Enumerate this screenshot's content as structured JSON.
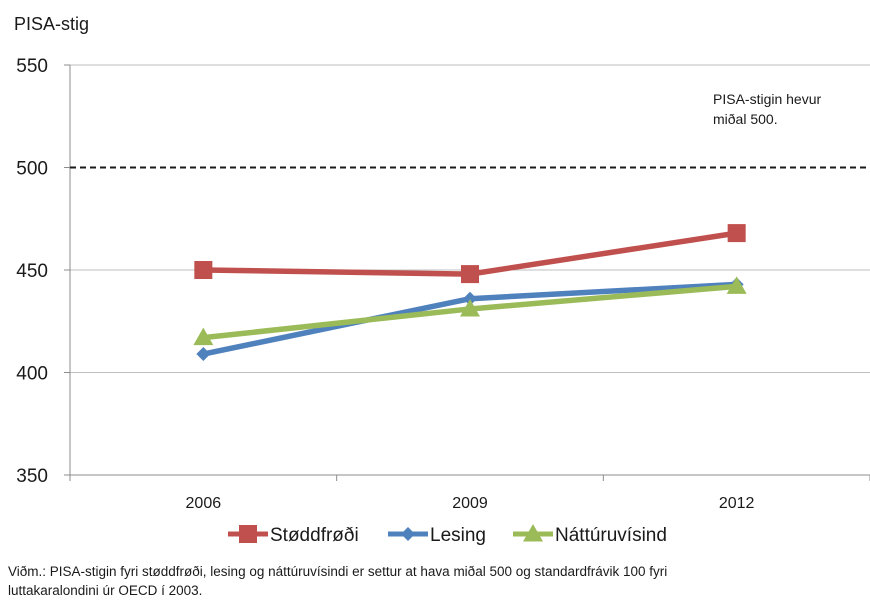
{
  "chart_data": {
    "type": "line",
    "ylabel": "PISA-stig",
    "ylim": [
      350,
      550
    ],
    "yticks": [
      350,
      400,
      450,
      500,
      550
    ],
    "categories": [
      "2006",
      "2009",
      "2012"
    ],
    "grid": true,
    "reference_line": {
      "value": 500,
      "style": "dashed"
    },
    "annotation": [
      "PISA-stigin hevur",
      "miðal 500."
    ],
    "legend_position": "bottom",
    "series": [
      {
        "name": "Støddfrøði",
        "values": [
          450,
          448,
          468
        ],
        "color": "#c0504d",
        "marker": "square"
      },
      {
        "name": "Lesing",
        "values": [
          409,
          436,
          443
        ],
        "color": "#4f81bd",
        "marker": "diamond"
      },
      {
        "name": "Náttúruvísind",
        "values": [
          417,
          431,
          442
        ],
        "color": "#9bbb59",
        "marker": "triangle"
      }
    ]
  },
  "footnote": {
    "line1": "Viðm.: PISA-stigin fyri støddfrøði, lesing og náttúruvísindi er settur at hava miðal 500 og standardfrávik 100  fyri",
    "line2": "luttakaralondini úr OECD í  2003."
  }
}
